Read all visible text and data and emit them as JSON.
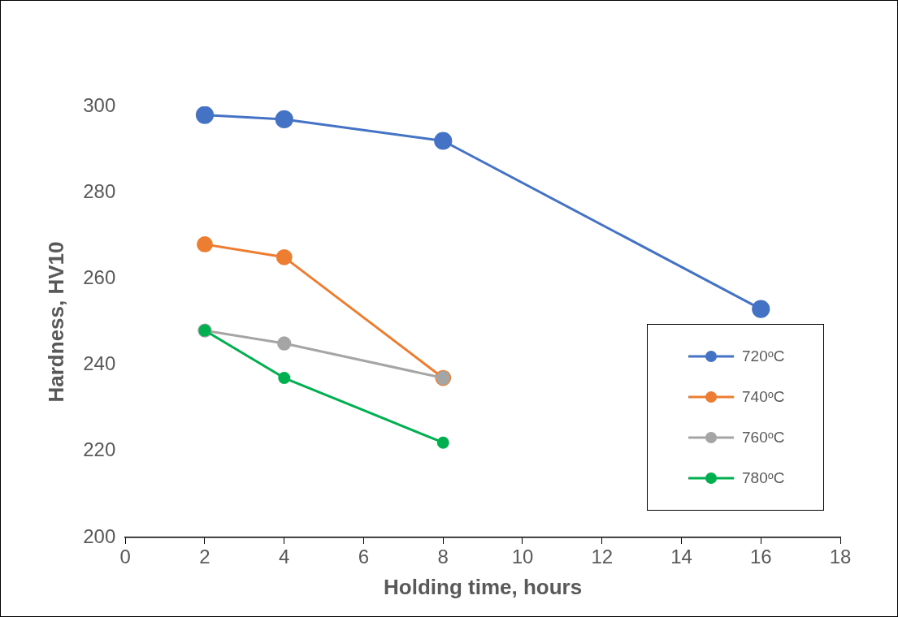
{
  "chart_data": {
    "type": "line",
    "xlabel": "Holding time, hours",
    "ylabel": "Hardness, HV10",
    "xlim": [
      0,
      18
    ],
    "xticks": [
      0,
      2,
      4,
      6,
      8,
      10,
      12,
      14,
      16,
      18
    ],
    "ylim": [
      200,
      300
    ],
    "yticks": [
      200,
      220,
      240,
      260,
      280,
      300
    ],
    "grid": false,
    "legend": "bottom right",
    "marker": "circle",
    "line_style": "solid",
    "series": [
      {
        "name": "720ᵒC",
        "color": "#4472c4",
        "x": [
          2,
          4,
          8,
          16
        ],
        "values": [
          298,
          297,
          292,
          253
        ]
      },
      {
        "name": "740ᵒC",
        "color": "#ed7d31",
        "x": [
          2,
          4,
          8
        ],
        "values": [
          268,
          265,
          237
        ]
      },
      {
        "name": "760ᵒC",
        "color": "#a5a5a5",
        "x": [
          2,
          4,
          8
        ],
        "values": [
          248,
          245,
          237
        ]
      },
      {
        "name": "780ᵒC",
        "color": "#00b050",
        "x": [
          2,
          4,
          8
        ],
        "values": [
          248,
          237,
          222
        ]
      }
    ]
  }
}
